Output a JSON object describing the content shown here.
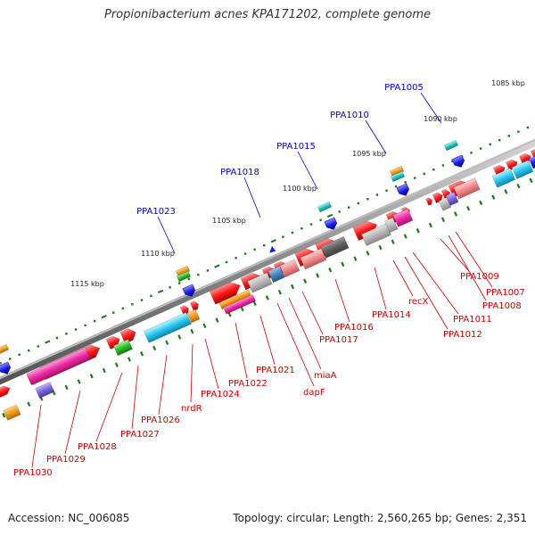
{
  "title": "Propionibacterium acnes KPA171202, complete genome",
  "footer": {
    "accession": "Accession: NC_006085",
    "summary": "Topology: circular; Length: 2,560,265 bp; Genes: 2,351"
  },
  "colors": {
    "forward_gene": "#ff1010",
    "ticks": "#1a7a1a",
    "label_blue": "#0000cc",
    "label_red": "#cc0000",
    "backbone": "#7a7a7a"
  },
  "kbp_labels": [
    "1085 kbp",
    "1090 kbp",
    "1095 kbp",
    "1100 kbp",
    "1105 kbp",
    "1110 kbp",
    "1115 kbp"
  ],
  "upper_gene_labels": [
    "PPA1005",
    "PPA1010",
    "PPA1015",
    "PPA1018",
    "PPA1023"
  ],
  "lower_gene_labels": [
    "PPA1007",
    "PPA1008",
    "PPA1009",
    "PPA1011",
    "PPA1012",
    "recX",
    "PPA1014",
    "PPA1016",
    "PPA1017",
    "miaA",
    "dapF",
    "PPA1021",
    "PPA1022",
    "PPA1024",
    "nrdR",
    "PPA1026",
    "PPA1027",
    "PPA1028",
    "PPA1029",
    "PPA1030"
  ]
}
